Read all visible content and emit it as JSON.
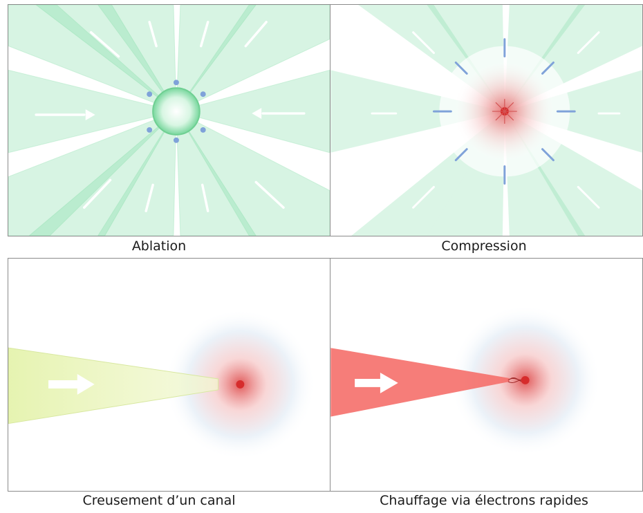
{
  "panels": [
    {
      "id": "ablation",
      "caption": "Ablation"
    },
    {
      "id": "compression",
      "caption": "Compression"
    },
    {
      "id": "channel",
      "caption": "Creusement d’un canal"
    },
    {
      "id": "fast-electrons",
      "caption": "Chauffage via électrons rapides"
    }
  ],
  "colors": {
    "beam_green": "#6fd99a",
    "beam_yellow": "#e3f2a8",
    "beam_red": "#f56f6a",
    "core_red": "#d62c2c",
    "expansion_arrow": "#7fa2d9",
    "halo_blue": "#dbe7f3"
  }
}
